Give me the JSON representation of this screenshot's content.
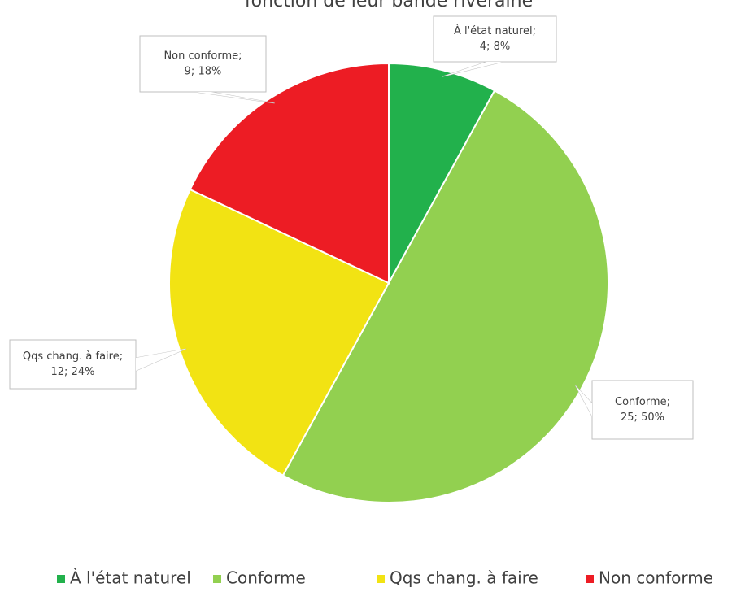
{
  "chart_data": {
    "type": "pie",
    "title": "fonction de leur bande riveraine",
    "categories": [
      "À l'état naturel",
      "Conforme",
      "Qqs chang. à faire",
      "Non conforme"
    ],
    "values": [
      4,
      25,
      12,
      9
    ],
    "value_labels": [
      [
        "À l'état naturel;",
        "4; 8%"
      ],
      [
        "Conforme;",
        "25; 50%"
      ],
      [
        "Qqs chang. à faire;",
        "12; 24%"
      ],
      [
        "Non conforme;",
        "9; 18%"
      ]
    ],
    "colors": [
      "#22b14c",
      "#92d050",
      "#f2e313",
      "#ed1c24"
    ],
    "legend": "bottom"
  }
}
